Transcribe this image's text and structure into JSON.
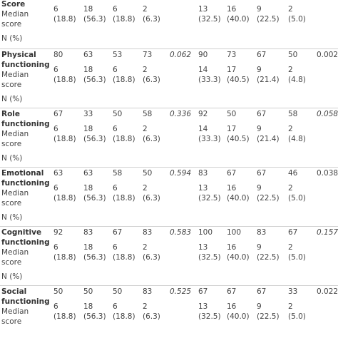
{
  "blocks": [
    {
      "label": "Health Score",
      "counts": [
        [
          "6",
          "(18.8)"
        ],
        [
          "18",
          "(56.3)"
        ],
        [
          "6",
          "(18.8)"
        ],
        [
          "2",
          "(6.3)"
        ],
        [
          "13",
          "(32.5)"
        ],
        [
          "16",
          "(40.0)"
        ],
        [
          "9",
          "(22.5)"
        ],
        [
          "2",
          "(5.0)"
        ]
      ],
      "median_label": "Median score",
      "n_label": "N (%)"
    },
    {
      "label": "Physical functioning",
      "values": [
        "80",
        "63",
        "53",
        "73",
        "0.062",
        "90",
        "73",
        "67",
        "50",
        "0.002"
      ],
      "p_italic": [
        true,
        false
      ],
      "counts": [
        [
          "6",
          "(18.8)"
        ],
        [
          "18",
          "(56.3)"
        ],
        [
          "6",
          "(18.8)"
        ],
        [
          "2",
          "(6.3)"
        ],
        [
          "14",
          "(33.3)"
        ],
        [
          "17",
          "(40.5)"
        ],
        [
          "9",
          "(21.4)"
        ],
        [
          "2",
          "(4.8)"
        ]
      ],
      "median_label": "Median score",
      "n_label": "N (%)"
    },
    {
      "label": "Role functioning",
      "values": [
        "67",
        "33",
        "50",
        "58",
        "0.336",
        "92",
        "50",
        "67",
        "58",
        "0.058"
      ],
      "p_italic": [
        true,
        true
      ],
      "counts": [
        [
          "6",
          "(18.8)"
        ],
        [
          "18",
          "(56.3)"
        ],
        [
          "6",
          "(18.8)"
        ],
        [
          "2",
          "(6.3)"
        ],
        [
          "14",
          "(33.3)"
        ],
        [
          "17",
          "(40.5)"
        ],
        [
          "9",
          "(21.4)"
        ],
        [
          "2",
          "(4.8)"
        ]
      ],
      "median_label": "Median score",
      "n_label": "N (%)"
    },
    {
      "label": "Emotional functioning",
      "values": [
        "63",
        "63",
        "58",
        "50",
        "0.594",
        "83",
        "67",
        "67",
        "46",
        "0.038"
      ],
      "p_italic": [
        true,
        false
      ],
      "counts": [
        [
          "6",
          "(18.8)"
        ],
        [
          "18",
          "(56.3)"
        ],
        [
          "6",
          "(18.8)"
        ],
        [
          "2",
          "(6.3)"
        ],
        [
          "13",
          "(32.5)"
        ],
        [
          "16",
          "(40.0)"
        ],
        [
          "9",
          "(22.5)"
        ],
        [
          "2",
          "(5.0)"
        ]
      ],
      "median_label": "Median score",
      "n_label": "N (%)"
    },
    {
      "label": "Cognitive functioning",
      "values": [
        "92",
        "83",
        "67",
        "83",
        "0.583",
        "100",
        "100",
        "83",
        "67",
        "0.157"
      ],
      "p_italic": [
        true,
        true
      ],
      "counts": [
        [
          "6",
          "(18.8)"
        ],
        [
          "18",
          "(56.3)"
        ],
        [
          "6",
          "(18.8)"
        ],
        [
          "2",
          "(6.3)"
        ],
        [
          "13",
          "(32.5)"
        ],
        [
          "16",
          "(40.0)"
        ],
        [
          "9",
          "(22.5)"
        ],
        [
          "2",
          "(5.0)"
        ]
      ],
      "median_label": "Median score",
      "n_label": "N (%)"
    },
    {
      "label": "Social functioning",
      "values": [
        "50",
        "50",
        "50",
        "83",
        "0.525",
        "67",
        "67",
        "67",
        "33",
        "0.022"
      ],
      "p_italic": [
        true,
        false
      ],
      "counts": [
        [
          "6",
          "(18.8)"
        ],
        [
          "18",
          "(56.3)"
        ],
        [
          "6",
          "(18.8)"
        ],
        [
          "2",
          "(6.3)"
        ],
        [
          "13",
          "(32.5)"
        ],
        [
          "16",
          "(40.0)"
        ],
        [
          "9",
          "(22.5)"
        ],
        [
          "2",
          "(5.0)"
        ]
      ],
      "median_label": "Median score"
    }
  ]
}
